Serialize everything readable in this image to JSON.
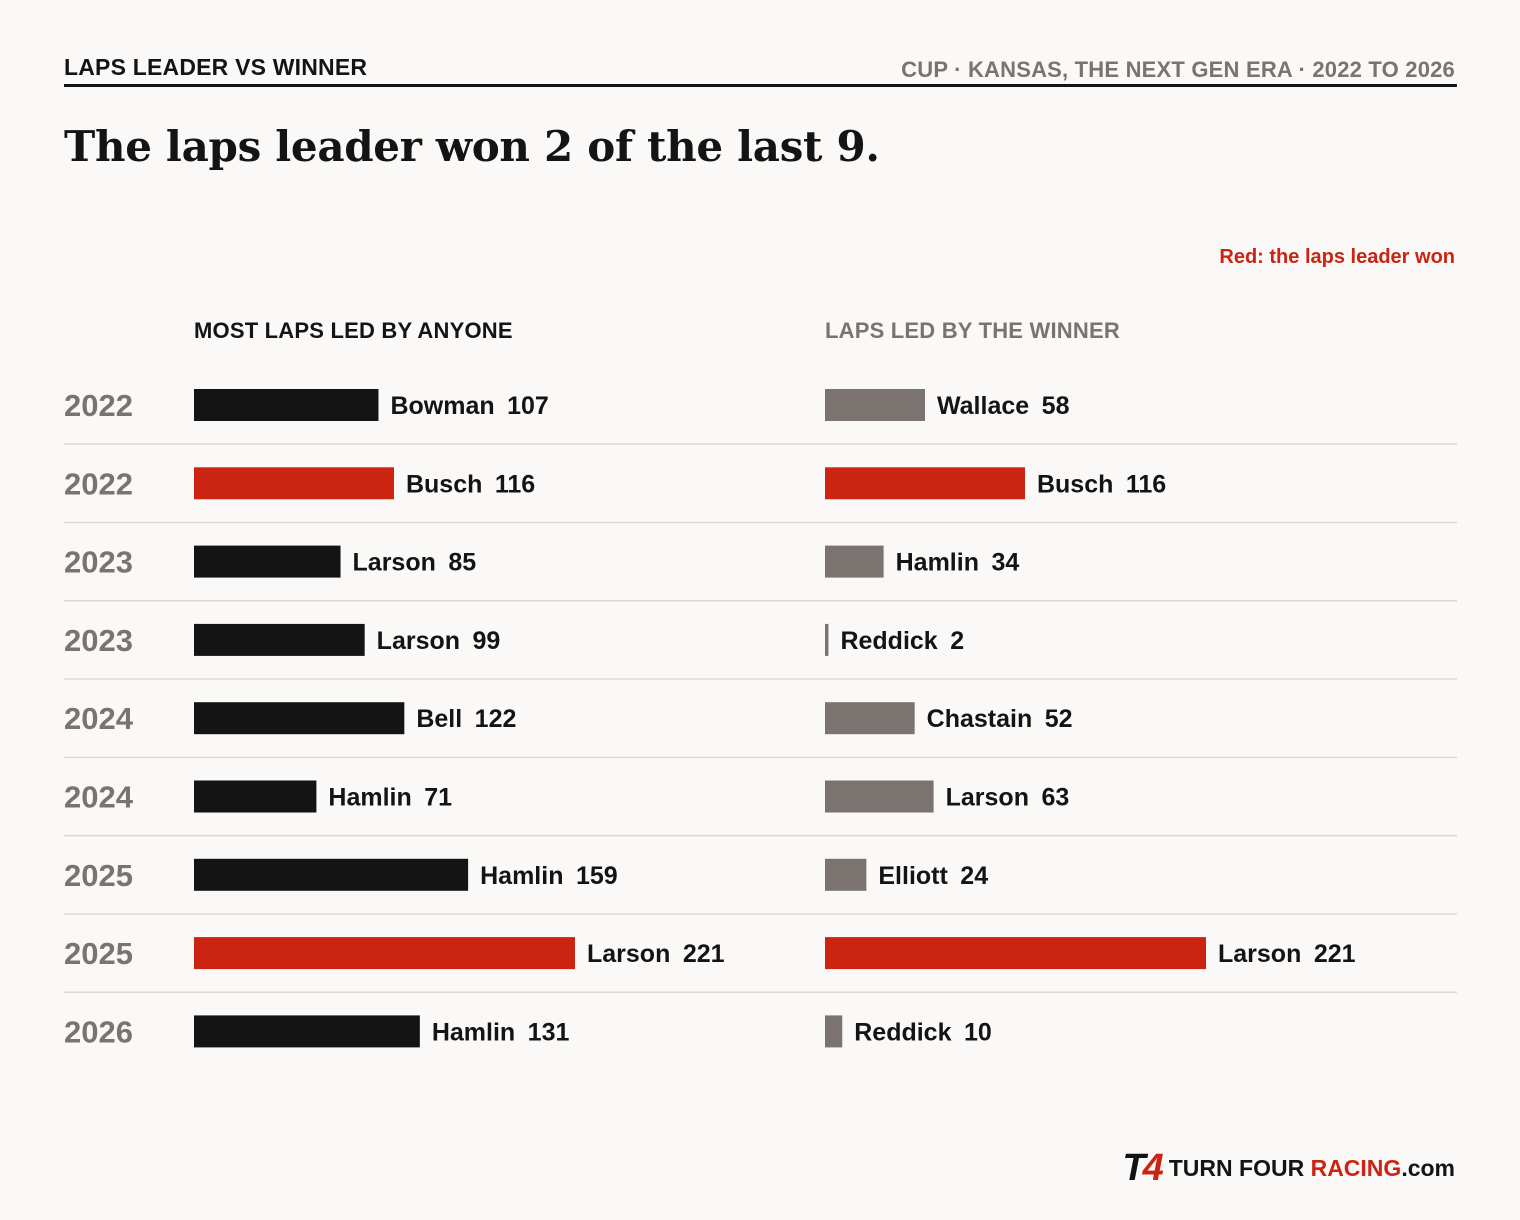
{
  "header": {
    "kicker": "LAPS LEADER VS WINNER",
    "meta": "CUP · KANSAS, THE NEXT GEN ERA · 2022 TO 2026",
    "headline": "The laps leader won 2 of the last 9.",
    "note": "Red: the laps leader won"
  },
  "colors": {
    "leader": "#141414",
    "winner": "#7b7370",
    "highlight": "#cc2412",
    "year": "#7b7370",
    "divider": "#dcd9d5"
  },
  "brand": {
    "mark_t": "T",
    "mark_4": "4",
    "text_a": "TURN FOUR ",
    "text_b": "RACING",
    "text_c": ".com"
  },
  "chart_data": {
    "type": "bar",
    "columns": [
      "MOST LAPS LED BY ANYONE",
      "LAPS LED BY THE WINNER"
    ],
    "rows": [
      {
        "year": "2022",
        "leader": "Bowman",
        "leader_laps": 107,
        "winner": "Wallace",
        "winner_laps": 58,
        "leader_won": false
      },
      {
        "year": "2022",
        "leader": "Busch",
        "leader_laps": 116,
        "winner": "Busch",
        "winner_laps": 116,
        "leader_won": true
      },
      {
        "year": "2023",
        "leader": "Larson",
        "leader_laps": 85,
        "winner": "Hamlin",
        "winner_laps": 34,
        "leader_won": false
      },
      {
        "year": "2023",
        "leader": "Larson",
        "leader_laps": 99,
        "winner": "Reddick",
        "winner_laps": 2,
        "leader_won": false
      },
      {
        "year": "2024",
        "leader": "Bell",
        "leader_laps": 122,
        "winner": "Chastain",
        "winner_laps": 52,
        "leader_won": false
      },
      {
        "year": "2024",
        "leader": "Hamlin",
        "leader_laps": 71,
        "winner": "Larson",
        "winner_laps": 63,
        "leader_won": false
      },
      {
        "year": "2025",
        "leader": "Hamlin",
        "leader_laps": 159,
        "winner": "Elliott",
        "winner_laps": 24,
        "leader_won": false
      },
      {
        "year": "2025",
        "leader": "Larson",
        "leader_laps": 221,
        "winner": "Larson",
        "winner_laps": 221,
        "leader_won": true
      },
      {
        "year": "2026",
        "leader": "Hamlin",
        "leader_laps": 131,
        "winner": "Reddick",
        "winner_laps": 10,
        "leader_won": false
      }
    ],
    "xlim": [
      0,
      221
    ]
  }
}
